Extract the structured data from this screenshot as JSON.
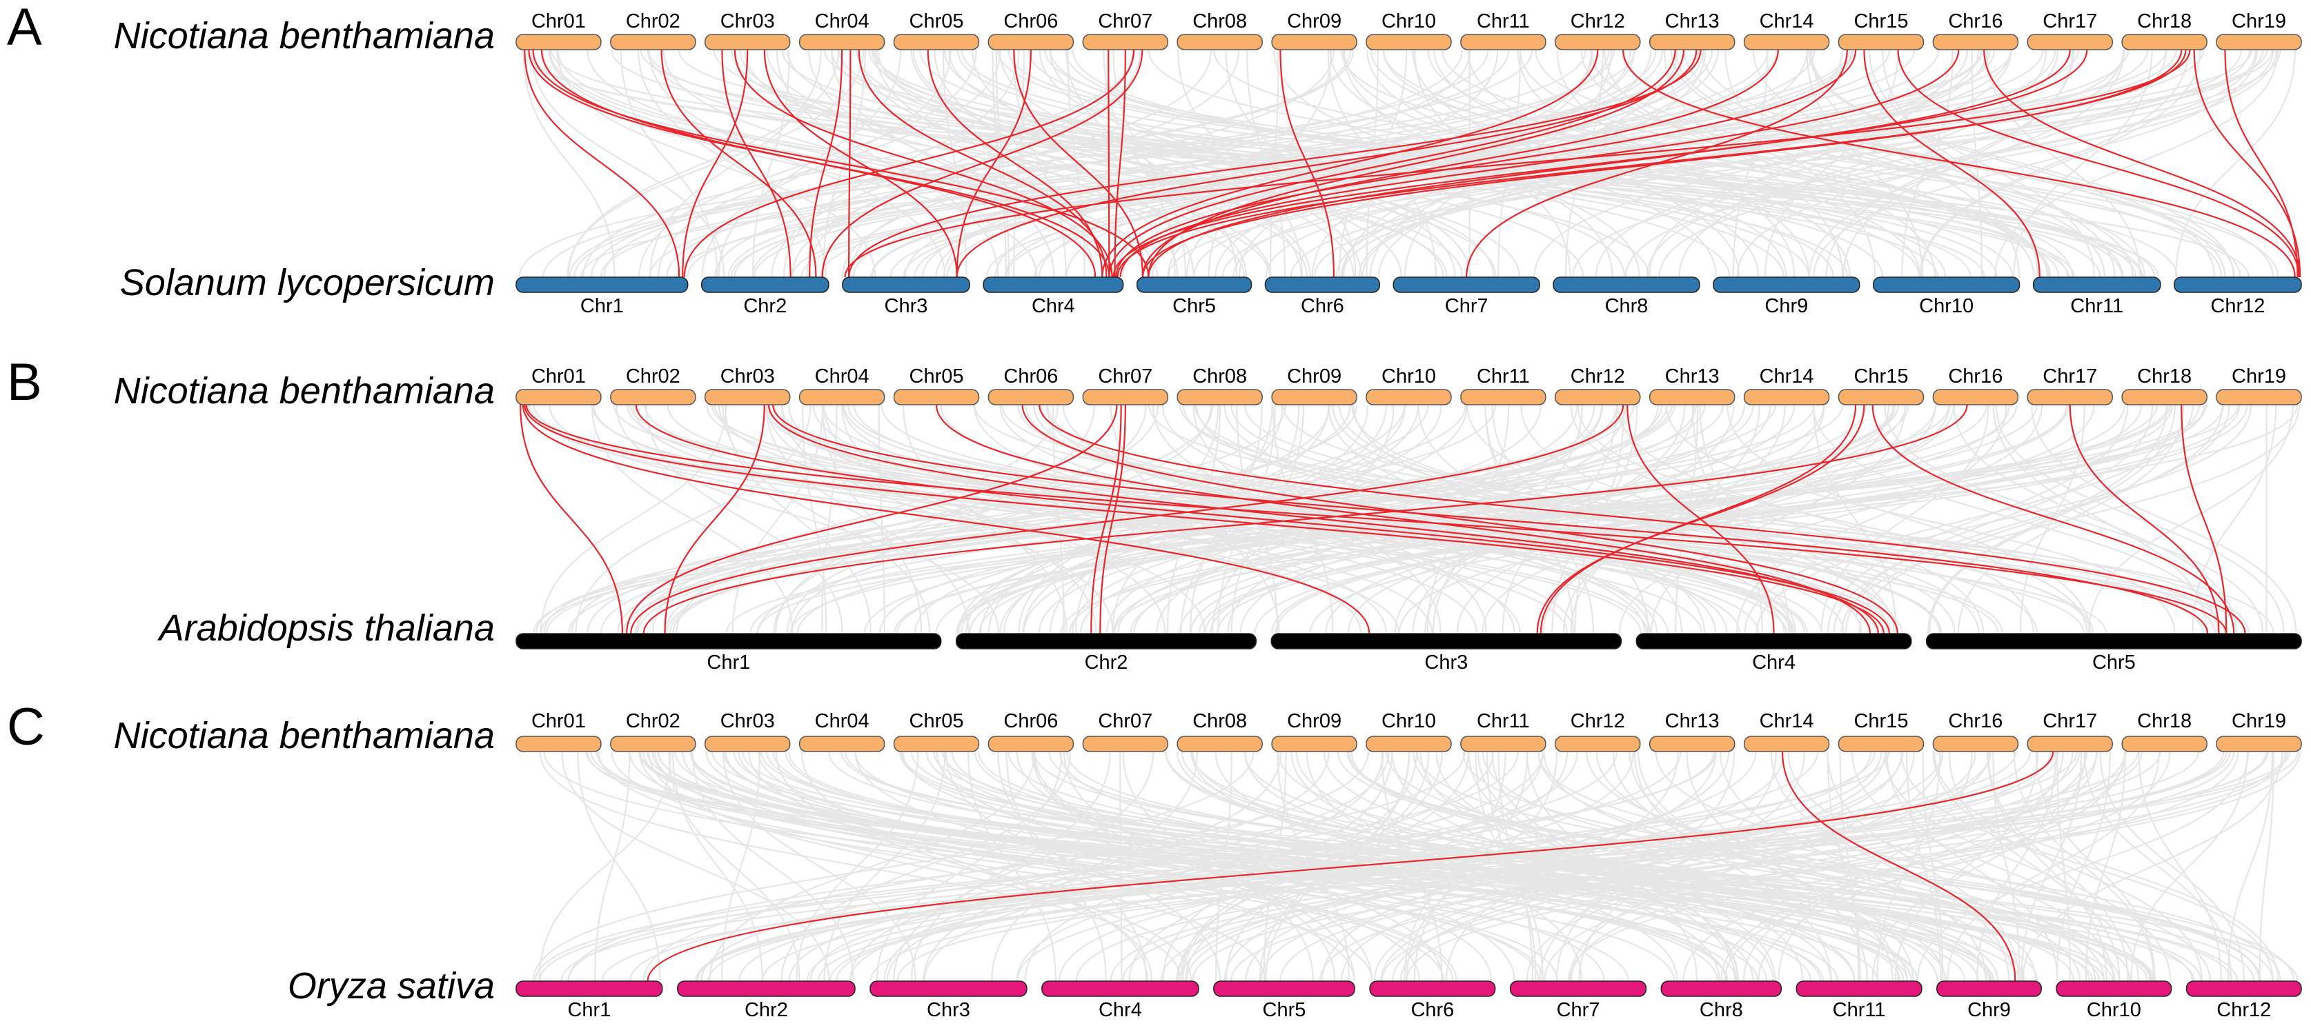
{
  "panels": [
    {
      "letter": "A",
      "top_species": "Nicotiana benthamiana",
      "bottom_species": "Solanum lycopersicum",
      "top_color": "#F8B06A",
      "bottom_color": "#2E77AE",
      "top_chromosomes": [
        "Chr01",
        "Chr02",
        "Chr03",
        "Chr04",
        "Chr05",
        "Chr06",
        "Chr07",
        "Chr08",
        "Chr09",
        "Chr10",
        "Chr11",
        "Chr12",
        "Chr13",
        "Chr14",
        "Chr15",
        "Chr16",
        "Chr17",
        "Chr18",
        "Chr19"
      ],
      "bottom_chromosomes": [
        "Chr1",
        "Chr2",
        "Chr3",
        "Chr4",
        "Chr5",
        "Chr6",
        "Chr7",
        "Chr8",
        "Chr9",
        "Chr10",
        "Chr11",
        "Chr12"
      ],
      "links": [
        [
          "Chr01",
          0.1,
          "Chr1",
          0.95
        ],
        [
          "Chr01",
          0.15,
          "Chr4",
          0.9
        ],
        [
          "Chr01",
          0.2,
          "Chr5",
          0.1
        ],
        [
          "Chr01",
          0.3,
          "Chr4",
          0.8
        ],
        [
          "Chr02",
          0.6,
          "Chr2",
          0.9
        ],
        [
          "Chr03",
          0.2,
          "Chr2",
          0.7
        ],
        [
          "Chr03",
          0.35,
          "Chr4",
          0.92
        ],
        [
          "Chr03",
          0.5,
          "Chr1",
          0.97
        ],
        [
          "Chr03",
          0.7,
          "Chr3",
          0.9
        ],
        [
          "Chr04",
          0.5,
          "Chr2",
          0.85
        ],
        [
          "Chr04",
          0.7,
          "Chr4",
          0.88
        ],
        [
          "Chr04",
          0.6,
          "Chr3",
          0.05
        ],
        [
          "Chr05",
          0.4,
          "Chr4",
          0.85
        ],
        [
          "Chr06",
          0.5,
          "Chr3",
          0.9
        ],
        [
          "Chr06",
          0.3,
          "Chr5",
          0.05
        ],
        [
          "Chr07",
          0.3,
          "Chr4",
          0.9
        ],
        [
          "Chr07",
          0.5,
          "Chr4",
          0.94
        ],
        [
          "Chr07",
          0.7,
          "Chr2",
          0.95
        ],
        [
          "Chr07",
          0.6,
          "Chr1",
          0.98
        ],
        [
          "Chr09",
          0.1,
          "Chr6",
          0.6
        ],
        [
          "Chr12",
          0.5,
          "Chr4",
          0.85
        ],
        [
          "Chr12",
          0.8,
          "Chr12",
          0.95
        ],
        [
          "Chr13",
          0.3,
          "Chr4",
          0.9
        ],
        [
          "Chr13",
          0.4,
          "Chr5",
          0.1
        ],
        [
          "Chr13",
          0.55,
          "Chr3",
          0.9
        ],
        [
          "Chr13",
          0.6,
          "Chr3",
          0.05
        ],
        [
          "Chr14",
          0.4,
          "Chr5",
          0.05
        ],
        [
          "Chr15",
          0.1,
          "Chr7",
          0.5
        ],
        [
          "Chr15",
          0.2,
          "Chr4",
          0.95
        ],
        [
          "Chr15",
          0.3,
          "Chr11",
          0.05
        ],
        [
          "Chr15",
          0.7,
          "Chr12",
          0.98
        ],
        [
          "Chr16",
          0.3,
          "Chr4",
          0.98
        ],
        [
          "Chr16",
          0.6,
          "Chr12",
          0.99
        ],
        [
          "Chr17",
          0.5,
          "Chr5",
          0.1
        ],
        [
          "Chr17",
          0.7,
          "Chr4",
          0.93
        ],
        [
          "Chr18",
          0.7,
          "Chr5",
          0.05
        ],
        [
          "Chr18",
          0.75,
          "Chr4",
          0.96
        ],
        [
          "Chr18",
          0.8,
          "Chr3",
          0.02
        ],
        [
          "Chr18",
          0.85,
          "Chr12",
          0.99
        ],
        [
          "Chr19",
          0.1,
          "Chr12",
          0.97
        ]
      ]
    },
    {
      "letter": "B",
      "top_species": "Nicotiana benthamiana",
      "bottom_species": "Arabidopsis thaliana",
      "top_color": "#F8B06A",
      "bottom_color": "#000000",
      "top_chromosomes": [
        "Chr01",
        "Chr02",
        "Chr03",
        "Chr04",
        "Chr05",
        "Chr06",
        "Chr07",
        "Chr08",
        "Chr09",
        "Chr10",
        "Chr11",
        "Chr12",
        "Chr13",
        "Chr14",
        "Chr15",
        "Chr16",
        "Chr17",
        "Chr18",
        "Chr19"
      ],
      "bottom_chromosomes": [
        "Chr1",
        "Chr2",
        "Chr3",
        "Chr4",
        "Chr5"
      ],
      "links": [
        [
          "Chr01",
          0.05,
          "Chr1",
          0.25
        ],
        [
          "Chr01",
          0.08,
          "Chr3",
          0.28
        ],
        [
          "Chr01",
          0.1,
          "Chr4",
          0.9
        ],
        [
          "Chr01",
          0.12,
          "Chr5",
          0.8
        ],
        [
          "Chr02",
          0.3,
          "Chr4",
          0.92
        ],
        [
          "Chr03",
          0.7,
          "Chr1",
          0.35
        ],
        [
          "Chr03",
          0.75,
          "Chr4",
          0.88
        ],
        [
          "Chr03",
          0.8,
          "Chr5",
          0.75
        ],
        [
          "Chr05",
          0.5,
          "Chr4",
          0.85
        ],
        [
          "Chr06",
          0.4,
          "Chr4",
          0.95
        ],
        [
          "Chr06",
          0.6,
          "Chr5",
          0.85
        ],
        [
          "Chr07",
          0.4,
          "Chr1",
          0.26
        ],
        [
          "Chr07",
          0.45,
          "Chr2",
          0.45
        ],
        [
          "Chr07",
          0.5,
          "Chr2",
          0.48
        ],
        [
          "Chr12",
          0.8,
          "Chr1",
          0.27
        ],
        [
          "Chr12",
          0.85,
          "Chr4",
          0.5
        ],
        [
          "Chr15",
          0.2,
          "Chr3",
          0.77
        ],
        [
          "Chr15",
          0.3,
          "Chr3",
          0.76
        ],
        [
          "Chr15",
          0.4,
          "Chr5",
          0.82
        ],
        [
          "Chr16",
          0.4,
          "Chr1",
          0.3
        ],
        [
          "Chr17",
          0.5,
          "Chr5",
          0.78
        ],
        [
          "Chr18",
          0.7,
          "Chr5",
          0.8
        ]
      ]
    },
    {
      "letter": "C",
      "top_species": "Nicotiana benthamiana",
      "bottom_species": "Oryza sativa",
      "top_color": "#F8B06A",
      "bottom_color": "#E4187A",
      "top_chromosomes": [
        "Chr01",
        "Chr02",
        "Chr03",
        "Chr04",
        "Chr05",
        "Chr06",
        "Chr07",
        "Chr08",
        "Chr09",
        "Chr10",
        "Chr11",
        "Chr12",
        "Chr13",
        "Chr14",
        "Chr15",
        "Chr16",
        "Chr17",
        "Chr18",
        "Chr19"
      ],
      "bottom_chromosomes": [
        "Chr1",
        "Chr2",
        "Chr3",
        "Chr4",
        "Chr5",
        "Chr6",
        "Chr7",
        "Chr8",
        "Chr11",
        "Chr9",
        "Chr10",
        "Chr12"
      ],
      "links": [
        [
          "Chr14",
          0.45,
          "Chr9",
          0.75
        ],
        [
          "Chr17",
          0.3,
          "Chr1",
          0.9
        ]
      ]
    }
  ]
}
